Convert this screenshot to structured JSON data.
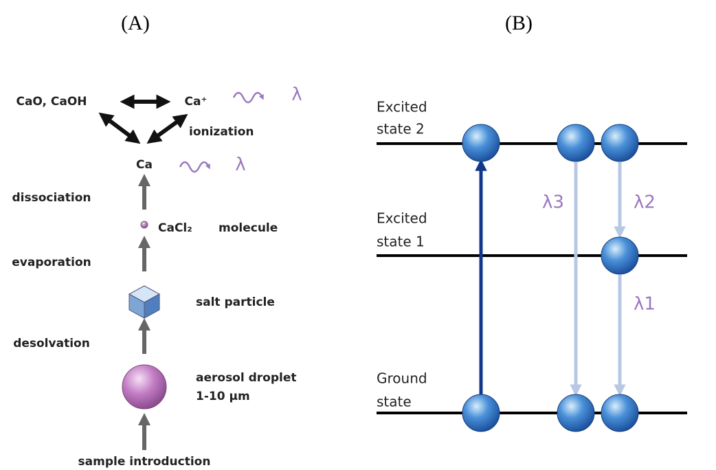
{
  "panel_a": {
    "label": "(A)",
    "oxides": "CaO, CaOH",
    "ion": "Ca⁺",
    "ion_emission": "λ",
    "ionization": "ionization",
    "atom": "Ca",
    "atom_emission": "λ",
    "dissociation": "dissociation",
    "molecule_formula": "CaCl₂",
    "molecule": "molecule",
    "evaporation": "evaporation",
    "salt_particle": "salt particle",
    "desolvation": "desolvation",
    "droplet": [
      "aerosol droplet",
      "1-10 µm"
    ],
    "sample_introduction": "sample introduction"
  },
  "panel_b": {
    "label": "(B)",
    "levels": [
      {
        "label": [
          "Excited",
          "state 2"
        ]
      },
      {
        "label": [
          "Excited",
          "state 1"
        ]
      },
      {
        "label": [
          "Ground",
          "state"
        ]
      }
    ],
    "transitions": [
      "λ3",
      "λ2",
      "λ1"
    ]
  }
}
